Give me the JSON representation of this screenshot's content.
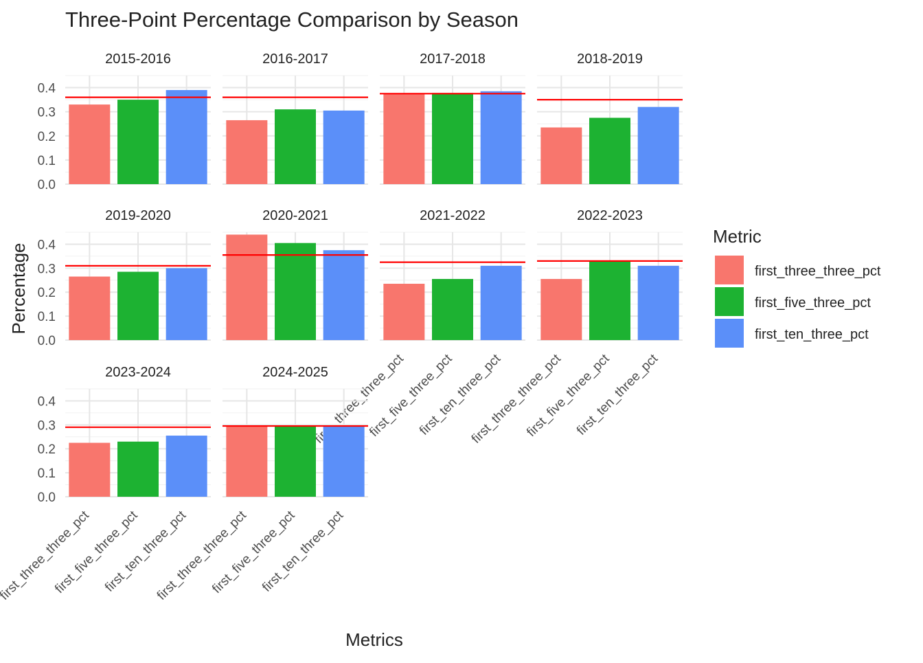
{
  "chart_data": {
    "type": "bar",
    "title": "Three-Point Percentage Comparison by Season",
    "xlabel": "Metrics",
    "ylabel": "Percentage",
    "ylim": [
      0,
      0.45
    ],
    "y_ticks": [
      0.0,
      0.1,
      0.2,
      0.3,
      0.4
    ],
    "y_tick_labels": [
      "0.0",
      "0.1",
      "0.2",
      "0.3",
      "0.4"
    ],
    "categories": [
      "first_three_three_pct",
      "first_five_three_pct",
      "first_ten_three_pct"
    ],
    "legend": {
      "title": "Metric",
      "placement": "right",
      "entries": [
        "first_three_three_pct",
        "first_five_three_pct",
        "first_ten_three_pct"
      ]
    },
    "colors": {
      "first_three_three_pct": "#F8766D",
      "first_five_three_pct": "#1DB232",
      "first_ten_three_pct": "#5B8FF9",
      "reference_line": "#FF0000"
    },
    "grid": true,
    "facets": [
      {
        "season": "2015-2016",
        "values": [
          0.33,
          0.35,
          0.39
        ],
        "reference": 0.36
      },
      {
        "season": "2016-2017",
        "values": [
          0.265,
          0.31,
          0.305
        ],
        "reference": 0.36
      },
      {
        "season": "2017-2018",
        "values": [
          0.375,
          0.378,
          0.385
        ],
        "reference": 0.375
      },
      {
        "season": "2018-2019",
        "values": [
          0.235,
          0.275,
          0.32
        ],
        "reference": 0.35
      },
      {
        "season": "2019-2020",
        "values": [
          0.265,
          0.285,
          0.3
        ],
        "reference": 0.31
      },
      {
        "season": "2020-2021",
        "values": [
          0.44,
          0.405,
          0.375
        ],
        "reference": 0.355
      },
      {
        "season": "2021-2022",
        "values": [
          0.235,
          0.255,
          0.31
        ],
        "reference": 0.325
      },
      {
        "season": "2022-2023",
        "values": [
          0.255,
          0.33,
          0.31
        ],
        "reference": 0.33
      },
      {
        "season": "2023-2024",
        "values": [
          0.225,
          0.23,
          0.255
        ],
        "reference": 0.29
      },
      {
        "season": "2024-2025",
        "values": [
          0.295,
          0.295,
          0.295
        ],
        "reference": 0.295
      }
    ]
  }
}
